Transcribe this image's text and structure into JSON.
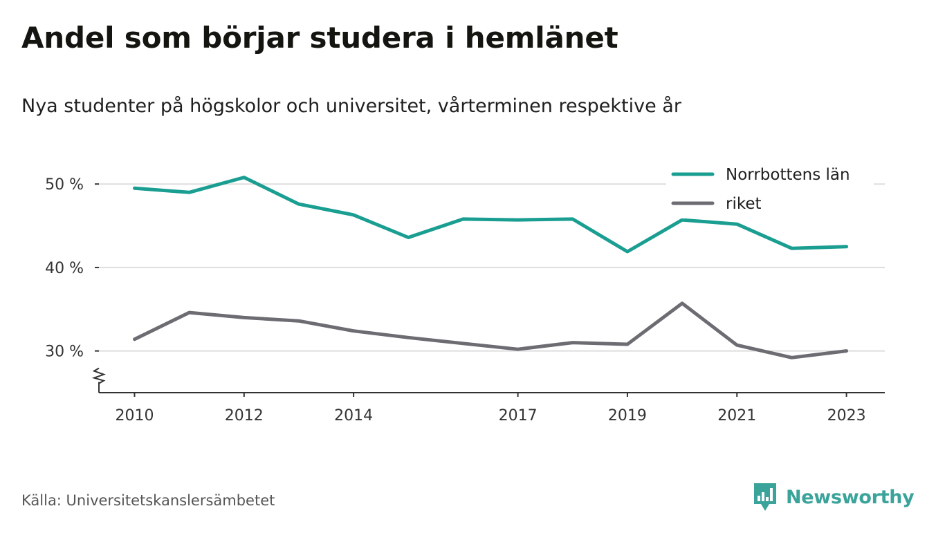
{
  "title": "Andel som börjar studera i hemlänet",
  "subtitle": "Nya studenter på högskolor och universitet, vårterminen respektive år",
  "source": "Källa: Universitetskanslersämbetet",
  "brand": {
    "name": "Newsworthy",
    "icon": "newsworthy-logo-icon",
    "color": "#3aa39a"
  },
  "chart_data": {
    "type": "line",
    "x": [
      2010,
      2011,
      2012,
      2013,
      2014,
      2015,
      2016,
      2017,
      2018,
      2019,
      2020,
      2021,
      2022,
      2023
    ],
    "x_tick_labels": [
      "2010",
      "2012",
      "2014",
      "2017",
      "2019",
      "2021",
      "2023"
    ],
    "y_tick_labels": [
      "50 %",
      "40 %",
      "30 %"
    ],
    "y_ticks": [
      50,
      40,
      30
    ],
    "ylim": [
      25,
      53
    ],
    "xlim": [
      2009.35,
      2023.7
    ],
    "grid": true,
    "broken_y_axis": true,
    "legend_position": "top-right",
    "series": [
      {
        "name": "Norrbottens län",
        "color": "#1a9e92",
        "values": [
          49.5,
          49.0,
          50.8,
          47.6,
          46.3,
          43.6,
          45.8,
          45.7,
          45.8,
          41.9,
          45.7,
          45.2,
          42.3,
          42.5
        ]
      },
      {
        "name": "riket",
        "color": "#6e6c73",
        "values": [
          31.4,
          34.6,
          34.0,
          33.6,
          32.4,
          31.6,
          30.9,
          30.2,
          31.0,
          30.8,
          35.7,
          30.7,
          29.2,
          30.0
        ]
      }
    ]
  }
}
